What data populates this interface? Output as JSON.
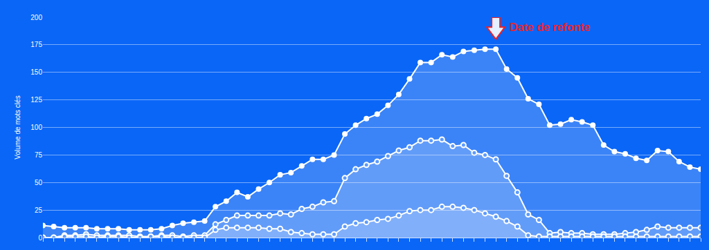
{
  "chart_data": {
    "type": "area",
    "y_label": "Volume de mots clés",
    "categories": [
      null,
      null,
      null,
      null,
      null,
      null,
      null,
      null,
      null,
      null,
      null,
      null,
      null,
      null,
      null,
      null,
      null,
      null,
      null,
      null,
      null,
      null,
      null,
      null,
      null,
      null,
      null,
      null,
      null,
      null,
      null,
      null,
      null,
      null,
      null,
      null,
      null,
      null,
      null,
      null,
      null,
      null,
      null,
      null,
      null,
      null,
      null,
      null,
      null,
      null,
      null,
      null,
      null,
      null,
      null,
      null,
      null,
      null,
      null,
      null,
      null,
      null
    ],
    "series": [
      {
        "color": "#ffffff",
        "marker": "circle",
        "values": [
          11,
          10,
          9,
          9,
          9,
          8,
          8,
          8,
          7,
          7,
          7,
          8,
          11,
          13,
          14,
          15,
          28,
          33,
          41,
          37,
          44,
          50,
          57,
          59,
          65,
          71,
          71,
          75,
          94,
          102,
          108,
          112,
          120,
          130,
          144,
          159,
          159,
          166,
          164,
          169,
          170,
          171,
          171,
          153,
          145,
          126,
          121,
          102,
          103,
          107,
          105,
          102,
          84,
          78,
          76,
          72,
          70,
          79,
          78,
          69,
          64,
          62
        ]
      },
      {
        "color": "#ffffff",
        "marker": "circle-open",
        "values": [
          0,
          0,
          2,
          2,
          3,
          2,
          2,
          2,
          2,
          1,
          1,
          2,
          2,
          1,
          2,
          2,
          12,
          16,
          20,
          20,
          20,
          20,
          22,
          21,
          26,
          28,
          32,
          33,
          54,
          62,
          66,
          69,
          74,
          79,
          82,
          88,
          88,
          89,
          83,
          84,
          77,
          75,
          71,
          56,
          41,
          21,
          16,
          4,
          5,
          4,
          4,
          3,
          3,
          3,
          4,
          5,
          7,
          10,
          9,
          9,
          9,
          9
        ]
      },
      {
        "color": "#ffffff",
        "marker": "circle-open",
        "values": [
          0,
          0,
          1,
          1,
          1,
          0,
          1,
          1,
          0,
          0,
          1,
          1,
          0,
          0,
          0,
          0,
          7,
          9,
          9,
          9,
          9,
          8,
          8,
          5,
          4,
          3,
          3,
          3,
          10,
          13,
          14,
          16,
          17,
          20,
          24,
          25,
          25,
          28,
          28,
          27,
          25,
          22,
          19,
          15,
          10,
          2,
          1,
          1,
          1,
          1,
          1,
          1,
          1,
          1,
          1,
          1,
          1,
          1,
          1,
          1,
          1,
          1
        ]
      }
    ],
    "ylim": [
      0,
      200
    ],
    "yticks": [
      0,
      25,
      50,
      75,
      100,
      125,
      150,
      175,
      200
    ],
    "grid": true,
    "tick_labels": "y",
    "annotations": [
      {
        "text": "Date de refonte",
        "index": 42,
        "color": "#e8232b"
      }
    ]
  }
}
